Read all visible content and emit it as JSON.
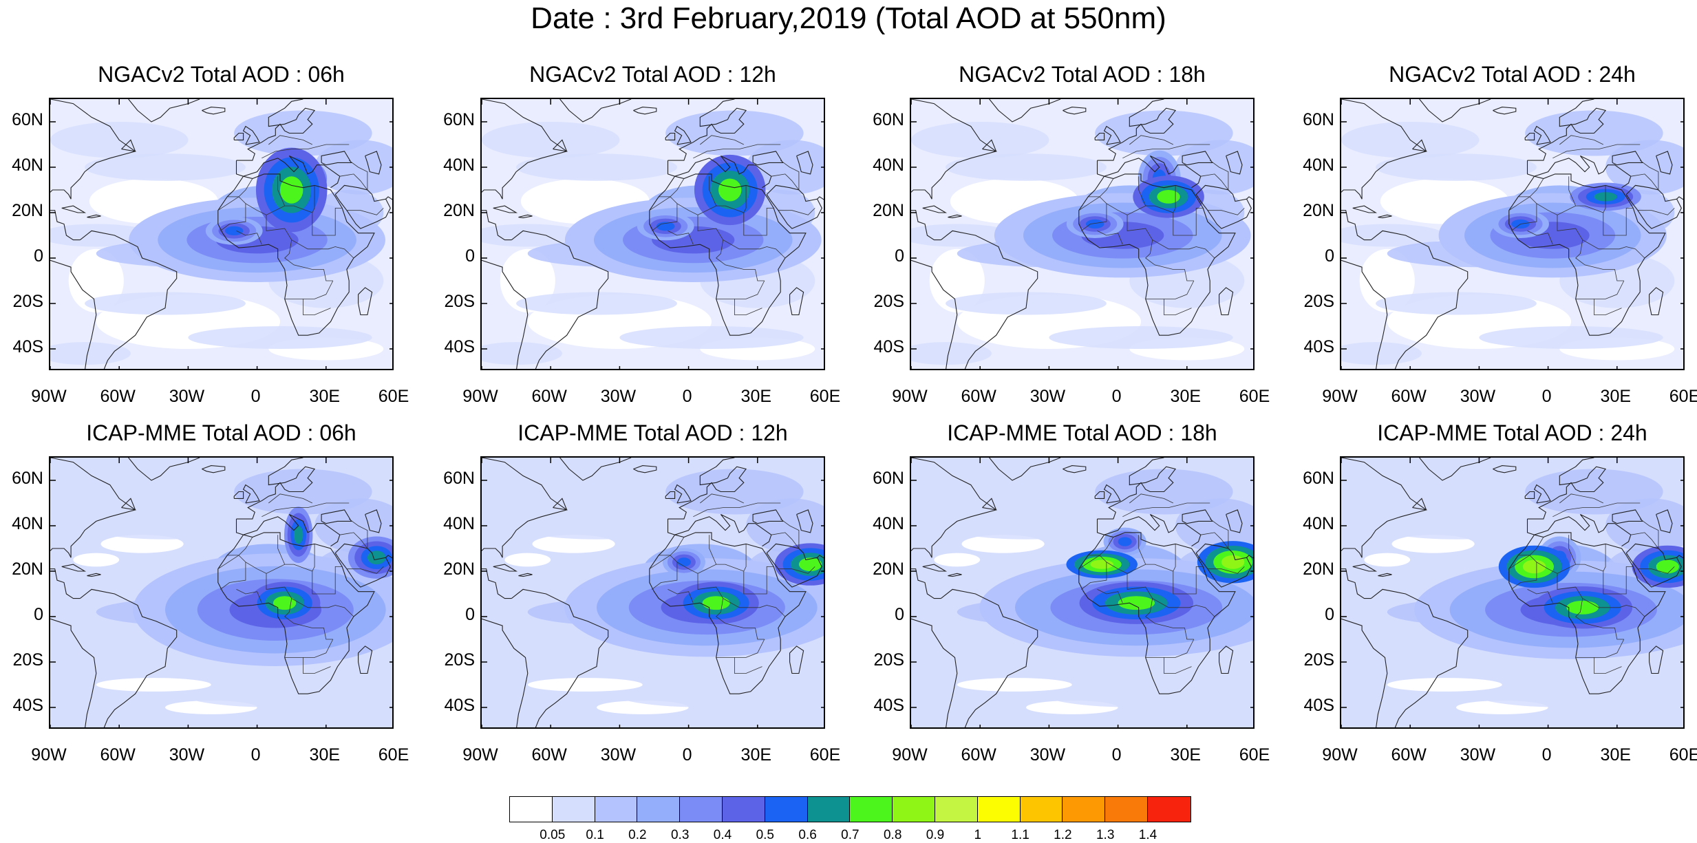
{
  "title": "Date : 3rd February,2019 (Total AOD at 550nm)",
  "panels": [
    {
      "title": "NGACv2 Total AOD : 06h",
      "model": "NGACv2",
      "hour": "06h"
    },
    {
      "title": "NGACv2 Total AOD : 12h",
      "model": "NGACv2",
      "hour": "12h"
    },
    {
      "title": "NGACv2 Total AOD : 18h",
      "model": "NGACv2",
      "hour": "18h"
    },
    {
      "title": "NGACv2 Total AOD : 24h",
      "model": "NGACv2",
      "hour": "24h"
    },
    {
      "title": "ICAP-MME Total AOD : 06h",
      "model": "ICAP-MME",
      "hour": "06h"
    },
    {
      "title": "ICAP-MME Total AOD : 12h",
      "model": "ICAP-MME",
      "hour": "12h"
    },
    {
      "title": "ICAP-MME Total AOD : 18h",
      "model": "ICAP-MME",
      "hour": "18h"
    },
    {
      "title": "ICAP-MME Total AOD : 24h",
      "model": "ICAP-MME",
      "hour": "24h"
    }
  ],
  "map_extent": {
    "lon_min": -90,
    "lon_max": 60,
    "lat_min": -50,
    "lat_max": 70
  },
  "lon_ticks": [
    {
      "value": -90,
      "label": "90W"
    },
    {
      "value": -60,
      "label": "60W"
    },
    {
      "value": -30,
      "label": "30W"
    },
    {
      "value": 0,
      "label": "0"
    },
    {
      "value": 30,
      "label": "30E"
    },
    {
      "value": 60,
      "label": "60E"
    }
  ],
  "lat_ticks": [
    {
      "value": 60,
      "label": "60N"
    },
    {
      "value": 40,
      "label": "40N"
    },
    {
      "value": 20,
      "label": "20N"
    },
    {
      "value": 0,
      "label": "0"
    },
    {
      "value": -20,
      "label": "20S"
    },
    {
      "value": -40,
      "label": "40S"
    }
  ],
  "colorbar": {
    "labels": [
      "0.05",
      "0.1",
      "0.2",
      "0.3",
      "0.4",
      "0.5",
      "0.6",
      "0.7",
      "0.8",
      "0.9",
      "1",
      "1.1",
      "1.2",
      "1.3",
      "1.4"
    ],
    "colors": [
      "#ffffff",
      "#d6defe",
      "#b4c3fd",
      "#95aefb",
      "#7b8cf6",
      "#5d63e6",
      "#1b63f3",
      "#0e9191",
      "#4cf51c",
      "#8ff517",
      "#c4f542",
      "#fdfd02",
      "#fdc400",
      "#fd9a03",
      "#f97a08",
      "#f7230c"
    ]
  },
  "aerosol_features": [
    [
      {
        "lon": 15,
        "lat": 30,
        "level": 8,
        "rx": 5,
        "ry": 6
      },
      {
        "lon": 18,
        "lat": 35,
        "level": 7,
        "rx": 4,
        "ry": 3
      },
      {
        "lon": -10,
        "lat": 12,
        "level": 6,
        "rx": 4,
        "ry": 2
      },
      {
        "lon": 0,
        "lat": 8,
        "level": 5,
        "rx": 18,
        "ry": 6
      }
    ],
    [
      {
        "lon": 18,
        "lat": 30,
        "level": 8,
        "rx": 5,
        "ry": 5
      },
      {
        "lon": 18,
        "lat": 36,
        "level": 7,
        "rx": 3,
        "ry": 3
      },
      {
        "lon": -10,
        "lat": 14,
        "level": 6,
        "rx": 4,
        "ry": 2
      },
      {
        "lon": 2,
        "lat": 8,
        "level": 5,
        "rx": 18,
        "ry": 6
      }
    ],
    [
      {
        "lon": 22,
        "lat": 27,
        "level": 8,
        "rx": 5,
        "ry": 3
      },
      {
        "lon": 18,
        "lat": 35,
        "level": 6,
        "rx": 3,
        "ry": 4
      },
      {
        "lon": -10,
        "lat": 15,
        "level": 6,
        "rx": 4,
        "ry": 2
      },
      {
        "lon": 2,
        "lat": 10,
        "level": 5,
        "rx": 18,
        "ry": 6
      }
    ],
    [
      {
        "lon": 25,
        "lat": 27,
        "level": 7,
        "rx": 5,
        "ry": 2
      },
      {
        "lon": -12,
        "lat": 15,
        "level": 6,
        "rx": 4,
        "ry": 2
      },
      {
        "lon": 2,
        "lat": 10,
        "level": 5,
        "rx": 16,
        "ry": 6
      }
    ],
    [
      {
        "lon": 12,
        "lat": 6,
        "level": 8,
        "rx": 5,
        "ry": 3
      },
      {
        "lon": 18,
        "lat": 36,
        "level": 7,
        "rx": 2,
        "ry": 4
      },
      {
        "lon": 52,
        "lat": 26,
        "level": 7,
        "rx": 4,
        "ry": 3
      },
      {
        "lon": 8,
        "lat": 3,
        "level": 5,
        "rx": 20,
        "ry": 8
      }
    ],
    [
      {
        "lon": 12,
        "lat": 6,
        "level": 8,
        "rx": 6,
        "ry": 3
      },
      {
        "lon": 53,
        "lat": 23,
        "level": 8,
        "rx": 5,
        "ry": 3
      },
      {
        "lon": -2,
        "lat": 24,
        "level": 6,
        "rx": 3,
        "ry": 2
      },
      {
        "lon": 8,
        "lat": 4,
        "level": 5,
        "rx": 20,
        "ry": 7
      }
    ],
    [
      {
        "lon": -7,
        "lat": 23,
        "level": 9,
        "rx": 5,
        "ry": 2
      },
      {
        "lon": 50,
        "lat": 24,
        "level": 9,
        "rx": 5,
        "ry": 3
      },
      {
        "lon": 8,
        "lat": 6,
        "level": 8,
        "rx": 8,
        "ry": 3
      },
      {
        "lon": 3,
        "lat": 33,
        "level": 6,
        "rx": 3,
        "ry": 2
      },
      {
        "lon": 8,
        "lat": 4,
        "level": 5,
        "rx": 22,
        "ry": 7
      }
    ],
    [
      {
        "lon": -6,
        "lat": 22,
        "level": 9,
        "rx": 5,
        "ry": 3
      },
      {
        "lon": 52,
        "lat": 22,
        "level": 8,
        "rx": 5,
        "ry": 3
      },
      {
        "lon": 15,
        "lat": 4,
        "level": 8,
        "rx": 7,
        "ry": 3
      },
      {
        "lon": 5,
        "lat": 26,
        "level": 6,
        "rx": 3,
        "ry": 3
      },
      {
        "lon": 10,
        "lat": 3,
        "level": 5,
        "rx": 22,
        "ry": 7
      }
    ]
  ]
}
